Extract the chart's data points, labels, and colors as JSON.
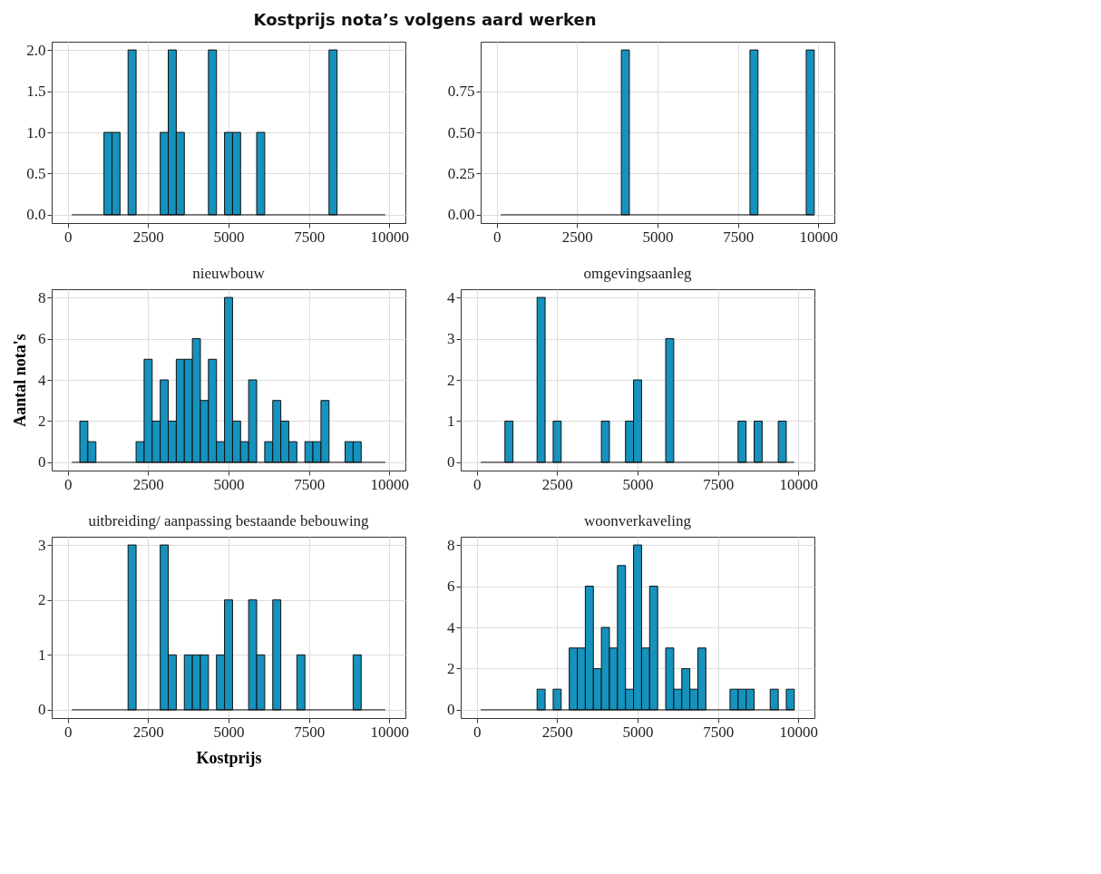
{
  "chart_data": [
    {
      "type": "histogram",
      "title": "Kostprijs nota’s volgens aard werken",
      "color": "#1592bd",
      "grid": true,
      "xlim": [
        -500,
        10500
      ],
      "xticks": [
        0,
        2500,
        5000,
        7500,
        10000
      ],
      "ylim": [
        -0.1,
        2.1
      ],
      "yticks": [
        {
          "value": 0,
          "label": "0.0"
        },
        {
          "value": 0.5,
          "label": "0.5"
        },
        {
          "value": 1,
          "label": "1.0"
        },
        {
          "value": 1.5,
          "label": "1.5"
        },
        {
          "value": 2,
          "label": "2.0"
        }
      ],
      "bins": [
        125,
        375,
        625,
        875,
        1125,
        1375,
        1625,
        1875,
        2125,
        2375,
        2625,
        2875,
        3125,
        3375,
        3625,
        3875,
        4125,
        4375,
        4625,
        4875,
        5125,
        5375,
        5625,
        5875,
        6125,
        6375,
        6625,
        6875,
        7125,
        7375,
        7625,
        7875,
        8125,
        8375,
        8625,
        8875,
        9125,
        9375,
        9625,
        9875
      ],
      "values": [
        0,
        0,
        0,
        0,
        1,
        1,
        0,
        2,
        0,
        0,
        0,
        1,
        2,
        1,
        0,
        0,
        0,
        2,
        0,
        1,
        1,
        0,
        0,
        1,
        0,
        0,
        0,
        0,
        0,
        0,
        0,
        0,
        2,
        0,
        0,
        0,
        0,
        0,
        0
      ]
    },
    {
      "type": "histogram",
      "color": "#1592bd",
      "grid": true,
      "xlim": [
        -500,
        10500
      ],
      "xticks": [
        0,
        2500,
        5000,
        7500,
        10000
      ],
      "ylim": [
        -0.05,
        1.05
      ],
      "yticks": [
        {
          "value": 0,
          "label": "0.00"
        },
        {
          "value": 0.25,
          "label": "0.25"
        },
        {
          "value": 0.5,
          "label": "0.50"
        },
        {
          "value": 0.75,
          "label": "0.75"
        }
      ],
      "bins": [
        125,
        375,
        625,
        875,
        1125,
        1375,
        1625,
        1875,
        2125,
        2375,
        2625,
        2875,
        3125,
        3375,
        3625,
        3875,
        4125,
        4375,
        4625,
        4875,
        5125,
        5375,
        5625,
        5875,
        6125,
        6375,
        6625,
        6875,
        7125,
        7375,
        7625,
        7875,
        8125,
        8375,
        8625,
        8875,
        9125,
        9375,
        9625,
        9875
      ],
      "values": [
        0,
        0,
        0,
        0,
        0,
        0,
        0,
        0,
        0,
        0,
        0,
        0,
        0,
        0,
        0,
        1,
        0,
        0,
        0,
        0,
        0,
        0,
        0,
        0,
        0,
        0,
        0,
        0,
        0,
        0,
        0,
        1,
        0,
        0,
        0,
        0,
        0,
        0,
        1
      ]
    },
    {
      "type": "histogram",
      "title": "nieuwbouw",
      "ylabel": "Aantal nota's",
      "color": "#1592bd",
      "grid": true,
      "xlim": [
        -500,
        10500
      ],
      "xticks": [
        0,
        2500,
        5000,
        7500,
        10000
      ],
      "ylim": [
        -0.4,
        8.4
      ],
      "yticks": [
        0,
        2,
        4,
        6,
        8
      ],
      "bins": [
        125,
        375,
        625,
        875,
        1125,
        1375,
        1625,
        1875,
        2125,
        2375,
        2625,
        2875,
        3125,
        3375,
        3625,
        3875,
        4125,
        4375,
        4625,
        4875,
        5125,
        5375,
        5625,
        5875,
        6125,
        6375,
        6625,
        6875,
        7125,
        7375,
        7625,
        7875,
        8125,
        8375,
        8625,
        8875,
        9125,
        9375,
        9625,
        9875
      ],
      "values": [
        0,
        2,
        1,
        0,
        0,
        0,
        0,
        0,
        1,
        5,
        2,
        4,
        2,
        5,
        5,
        6,
        3,
        5,
        1,
        8,
        2,
        1,
        4,
        0,
        1,
        3,
        2,
        1,
        0,
        1,
        1,
        3,
        0,
        0,
        1,
        1,
        0,
        0,
        0
      ]
    },
    {
      "type": "histogram",
      "title": "omgevingsaanleg",
      "color": "#1592bd",
      "grid": true,
      "xlim": [
        -500,
        10500
      ],
      "xticks": [
        0,
        2500,
        5000,
        7500,
        10000
      ],
      "ylim": [
        -0.2,
        4.2
      ],
      "yticks": [
        0,
        1,
        2,
        3,
        4
      ],
      "bins": [
        125,
        375,
        625,
        875,
        1125,
        1375,
        1625,
        1875,
        2125,
        2375,
        2625,
        2875,
        3125,
        3375,
        3625,
        3875,
        4125,
        4375,
        4625,
        4875,
        5125,
        5375,
        5625,
        5875,
        6125,
        6375,
        6625,
        6875,
        7125,
        7375,
        7625,
        7875,
        8125,
        8375,
        8625,
        8875,
        9125,
        9375,
        9625,
        9875
      ],
      "values": [
        0,
        0,
        0,
        1,
        0,
        0,
        0,
        4,
        0,
        1,
        0,
        0,
        0,
        0,
        0,
        1,
        0,
        0,
        1,
        2,
        0,
        0,
        0,
        3,
        0,
        0,
        0,
        0,
        0,
        0,
        0,
        0,
        1,
        0,
        1,
        0,
        0,
        1,
        0
      ]
    },
    {
      "type": "histogram",
      "title": "uitbreiding/ aanpassing bestaande bebouwing",
      "xlabel": "Kostprijs",
      "color": "#1592bd",
      "grid": true,
      "xlim": [
        -500,
        10500
      ],
      "xticks": [
        0,
        2500,
        5000,
        7500,
        10000
      ],
      "ylim": [
        -0.15,
        3.15
      ],
      "yticks": [
        0,
        1,
        2,
        3
      ],
      "bins": [
        125,
        375,
        625,
        875,
        1125,
        1375,
        1625,
        1875,
        2125,
        2375,
        2625,
        2875,
        3125,
        3375,
        3625,
        3875,
        4125,
        4375,
        4625,
        4875,
        5125,
        5375,
        5625,
        5875,
        6125,
        6375,
        6625,
        6875,
        7125,
        7375,
        7625,
        7875,
        8125,
        8375,
        8625,
        8875,
        9125,
        9375,
        9625,
        9875
      ],
      "values": [
        0,
        0,
        0,
        0,
        0,
        0,
        0,
        3,
        0,
        0,
        0,
        3,
        1,
        0,
        1,
        1,
        1,
        0,
        1,
        2,
        0,
        0,
        2,
        1,
        0,
        2,
        0,
        0,
        1,
        0,
        0,
        0,
        0,
        0,
        0,
        1,
        0,
        0,
        0
      ]
    },
    {
      "type": "histogram",
      "title": "woonverkaveling",
      "color": "#1592bd",
      "grid": true,
      "xlim": [
        -500,
        10500
      ],
      "xticks": [
        0,
        2500,
        5000,
        7500,
        10000
      ],
      "ylim": [
        -0.4,
        8.4
      ],
      "yticks": [
        0,
        2,
        4,
        6,
        8
      ],
      "bins": [
        125,
        375,
        625,
        875,
        1125,
        1375,
        1625,
        1875,
        2125,
        2375,
        2625,
        2875,
        3125,
        3375,
        3625,
        3875,
        4125,
        4375,
        4625,
        4875,
        5125,
        5375,
        5625,
        5875,
        6125,
        6375,
        6625,
        6875,
        7125,
        7375,
        7625,
        7875,
        8125,
        8375,
        8625,
        8875,
        9125,
        9375,
        9625,
        9875
      ],
      "values": [
        0,
        0,
        0,
        0,
        0,
        0,
        0,
        1,
        0,
        1,
        0,
        3,
        3,
        6,
        2,
        4,
        3,
        7,
        1,
        8,
        3,
        6,
        0,
        3,
        1,
        2,
        1,
        3,
        0,
        0,
        0,
        1,
        1,
        1,
        0,
        0,
        1,
        0,
        1
      ]
    }
  ]
}
